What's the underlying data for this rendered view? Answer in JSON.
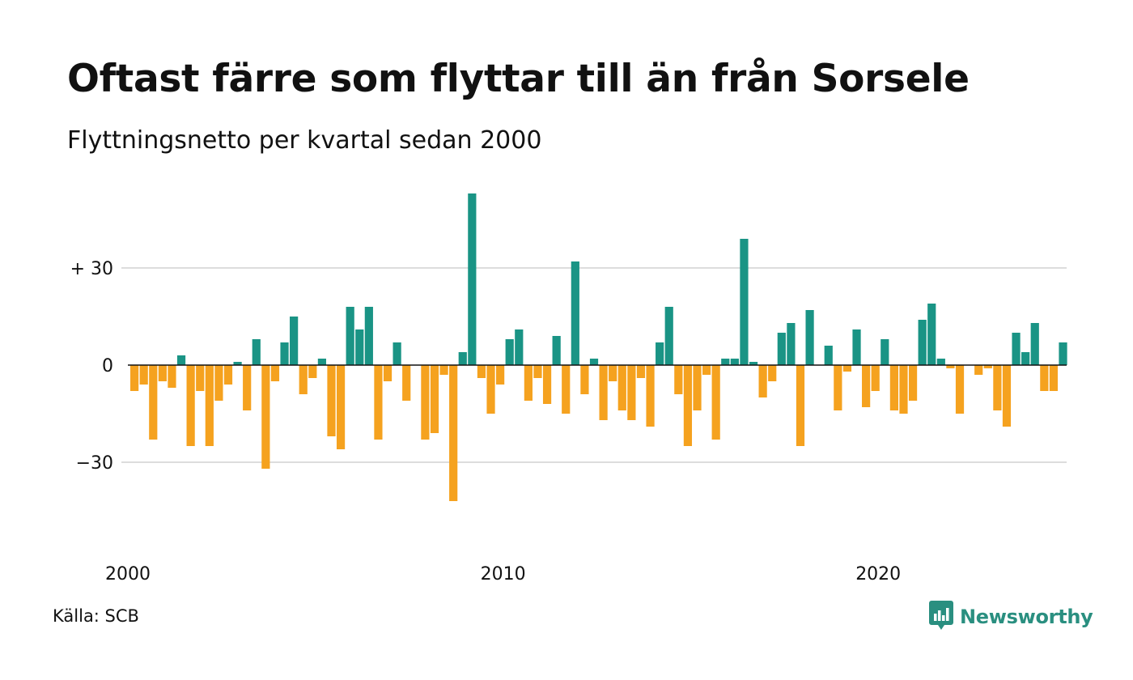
{
  "header": {
    "title": "Oftast färre som flyttar till än från Sorsele",
    "subtitle": "Flyttningsnetto per kvartal sedan 2000"
  },
  "footer": {
    "source": "Källa: SCB",
    "brand": "Newsworthy",
    "brand_icon": "newsworthy-logo-icon"
  },
  "colors": {
    "positive": "#1a9485",
    "negative": "#f5a21f",
    "grid": "#dddddd",
    "zero_line": "#111111",
    "brand": "#2a8f80"
  },
  "chart_data": {
    "type": "bar",
    "x_start": "2000 Q1",
    "y_ticks": [
      {
        "value": 30,
        "label": "+ 30"
      },
      {
        "value": 0,
        "label": "0"
      },
      {
        "value": -30,
        "label": "−30"
      }
    ],
    "x_ticks": [
      "2000",
      "2010",
      "2020"
    ],
    "ylim": [
      -45,
      55
    ],
    "grid": true,
    "values": [
      -8,
      -6,
      -23,
      -5,
      -7,
      3,
      -25,
      -8,
      -25,
      -11,
      -6,
      1,
      -14,
      8,
      -32,
      -5,
      7,
      15,
      -9,
      -4,
      2,
      -22,
      -26,
      18,
      11,
      18,
      -23,
      -5,
      7,
      -11,
      0,
      -23,
      -21,
      -3,
      -42,
      4,
      53,
      -4,
      -15,
      -6,
      8,
      11,
      -11,
      -4,
      -12,
      9,
      -15,
      32,
      -9,
      2,
      -17,
      -5,
      -14,
      -17,
      -4,
      -19,
      7,
      18,
      -9,
      -25,
      -14,
      -3,
      -23,
      2,
      2,
      39,
      1,
      -10,
      -5,
      10,
      13,
      -25,
      17,
      0,
      6,
      -14,
      -2,
      11,
      -13,
      -8,
      8,
      -14,
      -15,
      -11,
      14,
      19,
      2,
      -1,
      -15,
      0,
      -3,
      -1,
      -14,
      -19,
      10,
      4,
      13,
      -8,
      -8,
      7
    ]
  }
}
